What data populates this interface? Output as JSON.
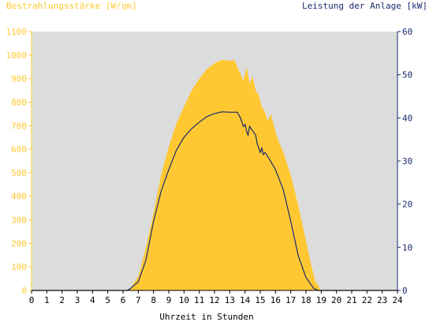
{
  "chart_data": {
    "type": "area",
    "title_left": "Bestrahlungsstärke [W/qm]",
    "title_right": "Leistung der Anlage [kW]",
    "xlabel": "Uhrzeit in Stunden",
    "xlim": [
      0,
      24
    ],
    "x_ticks": [
      "0",
      "1",
      "2",
      "3",
      "4",
      "5",
      "6",
      "7",
      "8",
      "9",
      "10",
      "11",
      "12",
      "13",
      "14",
      "15",
      "16",
      "17",
      "18",
      "19",
      "20",
      "21",
      "22",
      "23",
      "24"
    ],
    "y_left_lim": [
      0,
      1100
    ],
    "y_left_ticks": [
      "0",
      "100",
      "200",
      "300",
      "400",
      "500",
      "600",
      "700",
      "800",
      "900",
      "1000",
      "1100"
    ],
    "y_right_lim": [
      0,
      60
    ],
    "y_right_ticks": [
      "0",
      "10",
      "20",
      "30",
      "40",
      "50",
      "60"
    ],
    "grid": false,
    "colors": {
      "irradiance": "#ffc832",
      "power": "#1a2a6c",
      "left_axis_text": "#ffc832",
      "right_axis_text": "#1a2a6c",
      "plot_bg": "#dcdcdc"
    },
    "series": [
      {
        "axis": "left",
        "kind": "area",
        "x": [
          0,
          6.3,
          6.5,
          7,
          7.5,
          8,
          8.5,
          9,
          9.5,
          10,
          10.5,
          11,
          11.5,
          12,
          12.3,
          12.6,
          13,
          13.3,
          13.5,
          13.7,
          13.9,
          14.1,
          14.3,
          14.5,
          14.7,
          14.9,
          15.1,
          15.3,
          15.5,
          15.7,
          15.9,
          16.1,
          16.5,
          17,
          17.5,
          18,
          18.3,
          18.6,
          19,
          24
        ],
        "values": [
          0,
          0,
          10,
          60,
          180,
          330,
          490,
          610,
          710,
          780,
          850,
          900,
          940,
          965,
          975,
          980,
          975,
          980,
          950,
          920,
          890,
          950,
          880,
          910,
          850,
          830,
          780,
          760,
          720,
          750,
          700,
          650,
          590,
          490,
          360,
          210,
          120,
          40,
          0,
          0
        ]
      },
      {
        "axis": "right",
        "kind": "line",
        "x": [
          0,
          6.3,
          6.5,
          7,
          7.5,
          8,
          8.5,
          9,
          9.5,
          10,
          10.5,
          11,
          11.5,
          12,
          12.5,
          13,
          13.5,
          13.7,
          13.9,
          14,
          14.1,
          14.2,
          14.3,
          14.5,
          14.7,
          14.8,
          14.9,
          15,
          15.1,
          15.2,
          15.3,
          15.5,
          16,
          16.5,
          17,
          17.5,
          18,
          18.5,
          18.8,
          19,
          24
        ],
        "values": [
          0,
          0,
          0.5,
          2,
          7,
          16,
          23,
          28,
          32.5,
          35.5,
          37.5,
          39,
          40.3,
          41,
          41.4,
          41.3,
          41.3,
          40,
          38,
          38.5,
          37,
          36,
          38,
          37,
          36,
          34,
          33,
          32,
          33,
          31.5,
          32,
          31,
          28,
          23.5,
          16,
          8,
          3,
          0.5,
          0,
          0,
          0
        ]
      }
    ]
  }
}
